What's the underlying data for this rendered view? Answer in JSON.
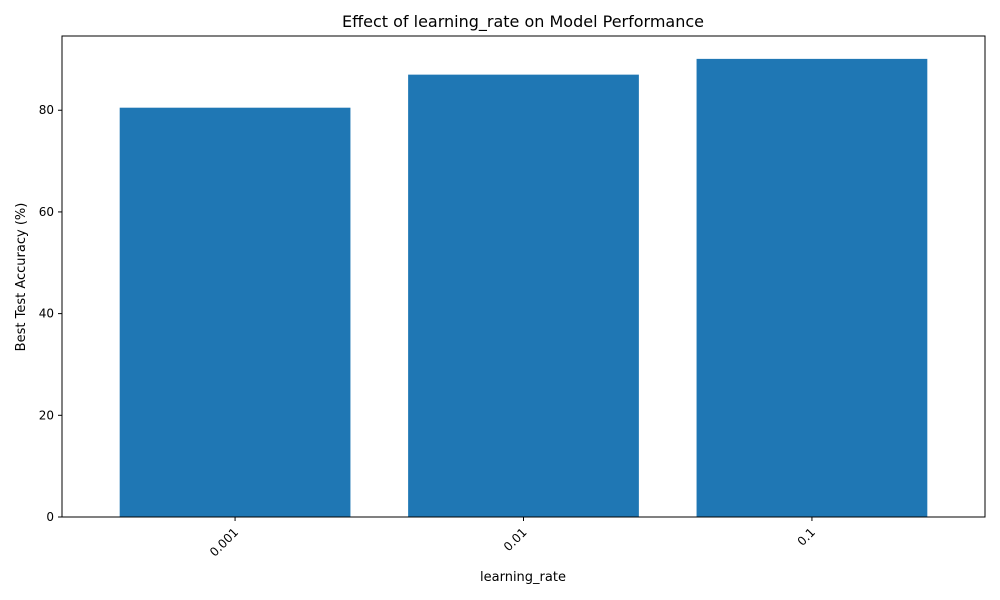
{
  "chart_data": {
    "type": "bar",
    "title": "Effect of learning_rate on Model Performance",
    "xlabel": "learning_rate",
    "ylabel": "Best Test Accuracy (%)",
    "categories": [
      "0.001",
      "0.01",
      "0.1"
    ],
    "values": [
      80.5,
      87.0,
      90.1
    ],
    "ylim": [
      0,
      94.6
    ],
    "yticks": [
      0,
      20,
      40,
      60,
      80
    ],
    "bar_color": "#1f77b4",
    "grid": false,
    "legend": "none"
  }
}
